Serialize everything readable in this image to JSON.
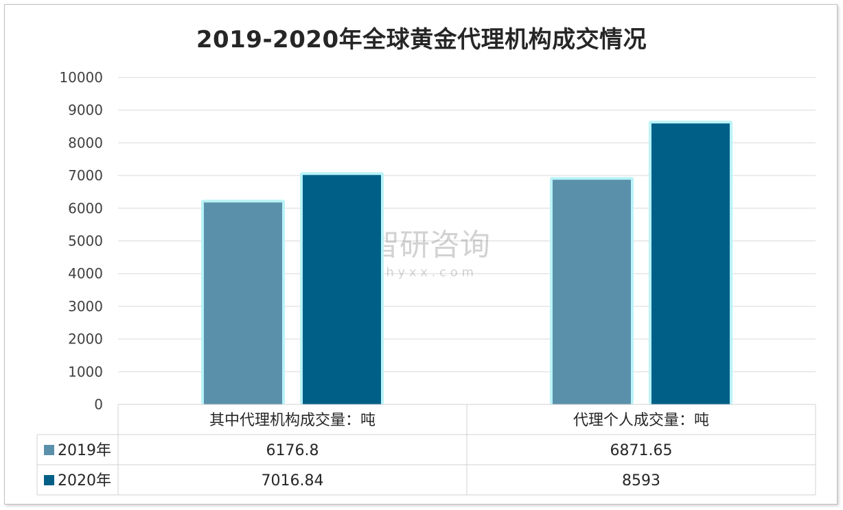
{
  "chart_data": {
    "type": "bar",
    "title": "2019-2020年全球黄金代理机构成交情况",
    "categories": [
      "其中代理机构成交量：吨",
      "代理个人成交量：吨"
    ],
    "series": [
      {
        "name": "2019年",
        "values": [
          6176.8,
          6871.65
        ],
        "labels": [
          "6176.8",
          "6871.65"
        ],
        "color": "#5b90ab"
      },
      {
        "name": "2020年",
        "values": [
          7016.84,
          8593
        ],
        "labels": [
          "7016.84",
          "8593"
        ],
        "color": "#005f87"
      }
    ],
    "ylim": [
      0,
      10000
    ],
    "yticks": [
      0,
      1000,
      2000,
      3000,
      4000,
      5000,
      6000,
      7000,
      8000,
      9000,
      10000
    ],
    "grid": true,
    "legend": "data-table",
    "bar_glow_color": "#b9f3f7"
  },
  "watermark": {
    "brand": "智研咨询",
    "url": "w w w . c h y x x . c o m"
  }
}
